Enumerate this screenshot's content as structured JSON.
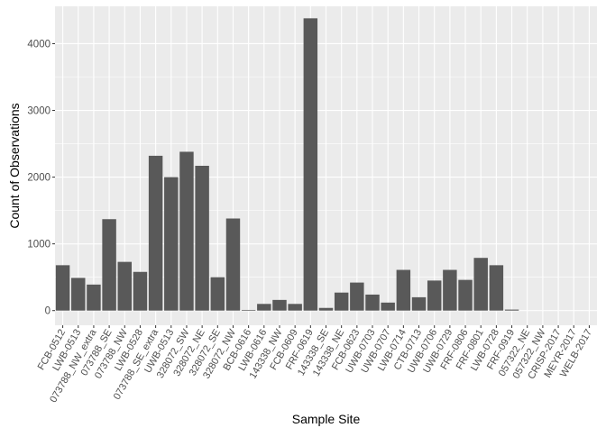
{
  "chart_data": {
    "type": "bar",
    "title": "",
    "xlabel": "Sample Site",
    "ylabel": "Count of Observations",
    "ylim": [
      -220,
      4560
    ],
    "yticks": [
      0,
      1000,
      2000,
      3000,
      4000
    ],
    "grid": true,
    "legend": "none",
    "colors": {
      "panel": "#EBEBEB",
      "grid": "#FFFFFF",
      "bar": "#595959",
      "tick_text": "#4D4D4D",
      "axis_title": "#000000"
    },
    "categories": [
      "FCB-0512",
      "LWB-0513",
      "073788_NW_extra",
      "073788_SE",
      "073788_NW",
      "LWB-0528",
      "073788_SE_extra",
      "UWB-0513",
      "328072_SW",
      "328072_NE",
      "328072_SE",
      "328072_NW",
      "BCB-0616",
      "LWB-0616",
      "143338_NW",
      "FCB-0609",
      "FRF-0619",
      "143338_SE",
      "143338_NE",
      "FCB-0623",
      "UWB-0703",
      "UWB-0707",
      "LWB-0714",
      "CTB-0713",
      "UWB-0706",
      "UWB-0729",
      "FRF-0806",
      "FRF-0801",
      "LWB-0728",
      "FRF-0919",
      "057322_NE",
      "057322_NW",
      "CRISP-2017",
      "MEYR-2017",
      "WELB-2017"
    ],
    "values": [
      680,
      490,
      390,
      1370,
      730,
      580,
      2320,
      2000,
      2380,
      2170,
      500,
      1380,
      10,
      100,
      160,
      100,
      4380,
      40,
      270,
      420,
      240,
      120,
      610,
      200,
      450,
      610,
      460,
      790,
      680,
      15,
      0,
      0,
      0,
      0,
      0
    ]
  }
}
